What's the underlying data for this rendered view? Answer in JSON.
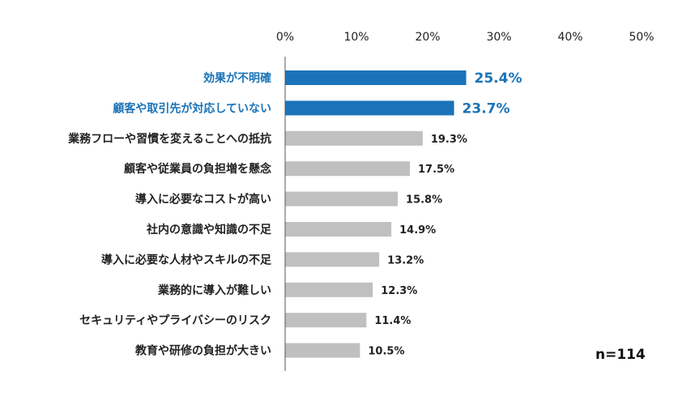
{
  "chart_data": {
    "type": "bar",
    "orientation": "horizontal",
    "categories": [
      "効果が不明確",
      "顧客や取引先が対応していない",
      "業務フローや習慣を変えることへの抵抗",
      "顧客や従業員の負担増を懸念",
      "導入に必要なコストが高い",
      "社内の意識や知識の不足",
      "導入に必要な人材やスキルの不足",
      "業務的に導入が難しい",
      "セキュリティやプライバシーのリスク",
      "教育や研修の負担が大きい"
    ],
    "values": [
      25.4,
      23.7,
      19.3,
      17.5,
      15.8,
      14.9,
      13.2,
      12.3,
      11.4,
      10.5
    ],
    "value_labels": [
      "25.4%",
      "23.7%",
      "19.3%",
      "17.5%",
      "15.8%",
      "14.9%",
      "13.2%",
      "12.3%",
      "11.4%",
      "10.5%"
    ],
    "highlighted": [
      true,
      true,
      false,
      false,
      false,
      false,
      false,
      false,
      false,
      false
    ],
    "xlim": [
      0,
      50
    ],
    "xticks": [
      0,
      10,
      20,
      30,
      40,
      50
    ],
    "xtick_labels": [
      "0%",
      "10%",
      "20%",
      "30%",
      "40%",
      "50%"
    ],
    "axis_position": "top",
    "grid": false,
    "colors": {
      "highlight": "#1a73b8",
      "default": "#c0c0c0",
      "axis": "#555555"
    }
  },
  "note": "n=114"
}
